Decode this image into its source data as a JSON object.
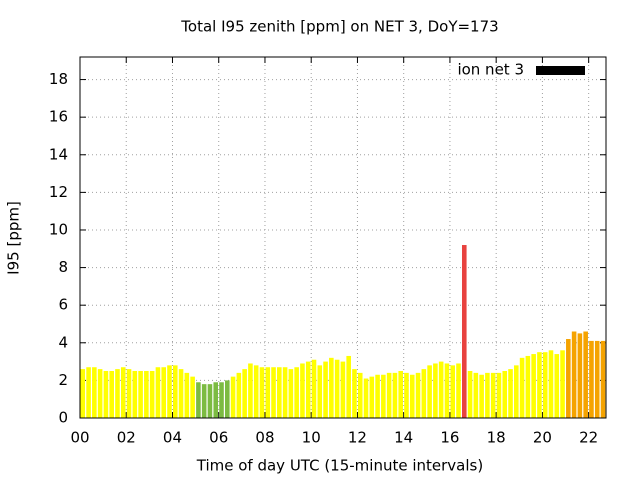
{
  "chart_data": {
    "type": "bar",
    "title": "Total I95 zenith [ppm] on NET 3, DoY=173",
    "xlabel": "Time of day UTC (15-minute intervals)",
    "ylabel": "I95 [ppm]",
    "xlim": [
      0,
      22.75
    ],
    "xticks": [
      {
        "value": 0,
        "label": "00"
      },
      {
        "value": 2,
        "label": "02"
      },
      {
        "value": 4,
        "label": "04"
      },
      {
        "value": 6,
        "label": "06"
      },
      {
        "value": 8,
        "label": "08"
      },
      10,
      12,
      14,
      16,
      18,
      20,
      22
    ],
    "ylim": [
      0,
      19.2
    ],
    "yticks": [
      0,
      2,
      4,
      6,
      8,
      10,
      12,
      14,
      16,
      18
    ],
    "grid": true,
    "legend": "top right",
    "x": [
      0,
      0.25,
      0.5,
      0.75,
      1,
      1.25,
      1.5,
      1.75,
      2,
      2.25,
      2.5,
      2.75,
      3,
      3.25,
      3.5,
      3.75,
      4,
      4.25,
      4.5,
      4.75,
      5,
      5.25,
      5.5,
      5.75,
      6,
      6.25,
      6.5,
      6.75,
      7,
      7.25,
      7.5,
      7.75,
      8,
      8.25,
      8.5,
      8.75,
      9,
      9.25,
      9.5,
      9.75,
      10,
      10.25,
      10.5,
      10.75,
      11,
      11.25,
      11.5,
      11.75,
      12,
      12.25,
      12.5,
      12.75,
      13,
      13.25,
      13.5,
      13.75,
      14,
      14.25,
      14.5,
      14.75,
      15,
      15.25,
      15.5,
      15.75,
      16,
      16.25,
      16.5,
      16.75,
      17,
      17.25,
      17.5,
      17.75,
      18,
      18.25,
      18.5,
      18.75,
      19,
      19.25,
      19.5,
      19.75,
      20,
      20.25,
      20.5,
      20.75,
      21,
      21.25,
      21.5,
      21.75,
      22,
      22.25,
      22.5
    ],
    "series": [
      {
        "name": "ion net 3",
        "color": "#000000",
        "values": [
          2.6,
          2.7,
          2.7,
          2.6,
          2.5,
          2.5,
          2.6,
          2.7,
          2.6,
          2.5,
          2.5,
          2.5,
          2.5,
          2.7,
          2.7,
          2.8,
          2.8,
          2.6,
          2.4,
          2.2,
          1.9,
          1.8,
          1.8,
          1.9,
          1.9,
          2.0,
          2.2,
          2.4,
          2.6,
          2.9,
          2.8,
          2.7,
          2.7,
          2.7,
          2.7,
          2.7,
          2.6,
          2.7,
          2.9,
          3.0,
          3.1,
          2.8,
          3.0,
          3.2,
          3.1,
          3.0,
          3.3,
          2.6,
          2.4,
          2.1,
          2.2,
          2.3,
          2.3,
          2.4,
          2.4,
          2.5,
          2.4,
          2.3,
          2.4,
          2.6,
          2.8,
          2.9,
          3.0,
          2.9,
          2.8,
          2.9,
          9.2,
          2.5,
          2.4,
          2.3,
          2.4,
          2.4,
          2.4,
          2.5,
          2.6,
          2.8,
          3.2,
          3.3,
          3.4,
          3.5,
          3.5,
          3.6,
          3.4,
          3.6,
          4.2,
          4.6,
          4.5,
          4.6,
          4.1,
          4.1,
          4.1
        ],
        "colors": [
          "#ffff00",
          "#ffff00",
          "#ffff00",
          "#ffff00",
          "#ffff00",
          "#ffff00",
          "#ffff00",
          "#ffff00",
          "#ffff00",
          "#ffff00",
          "#ffff00",
          "#ffff00",
          "#ffff00",
          "#ffff00",
          "#ffff00",
          "#ffff00",
          "#ffff00",
          "#ffff00",
          "#ffff00",
          "#ffff00",
          "#7cbb42",
          "#7cbb42",
          "#7cbb42",
          "#7cbb42",
          "#7cbb42",
          "#7cbb42",
          "#ffff00",
          "#ffff00",
          "#ffff00",
          "#ffff00",
          "#ffff00",
          "#ffff00",
          "#ffff00",
          "#ffff00",
          "#ffff00",
          "#ffff00",
          "#ffff00",
          "#ffff00",
          "#ffff00",
          "#ffff00",
          "#ffff00",
          "#ffff00",
          "#ffff00",
          "#ffff00",
          "#ffff00",
          "#ffff00",
          "#ffff00",
          "#ffff00",
          "#ffff00",
          "#ffff00",
          "#ffff00",
          "#ffff00",
          "#ffff00",
          "#ffff00",
          "#ffff00",
          "#ffff00",
          "#ffff00",
          "#ffff00",
          "#ffff00",
          "#ffff00",
          "#ffff00",
          "#ffff00",
          "#ffff00",
          "#ffff00",
          "#ffff00",
          "#ffff00",
          "#e8423f",
          "#ffff00",
          "#ffff00",
          "#ffff00",
          "#ffff00",
          "#ffff00",
          "#ffff00",
          "#ffff00",
          "#ffff00",
          "#ffff00",
          "#ffff00",
          "#ffff00",
          "#ffff00",
          "#ffff00",
          "#ffff00",
          "#ffff00",
          "#ffff00",
          "#ffff00",
          "#f5a300",
          "#f5a300",
          "#f5a300",
          "#f5a300",
          "#f5a300",
          "#f5a300",
          "#f5a300"
        ]
      }
    ]
  }
}
